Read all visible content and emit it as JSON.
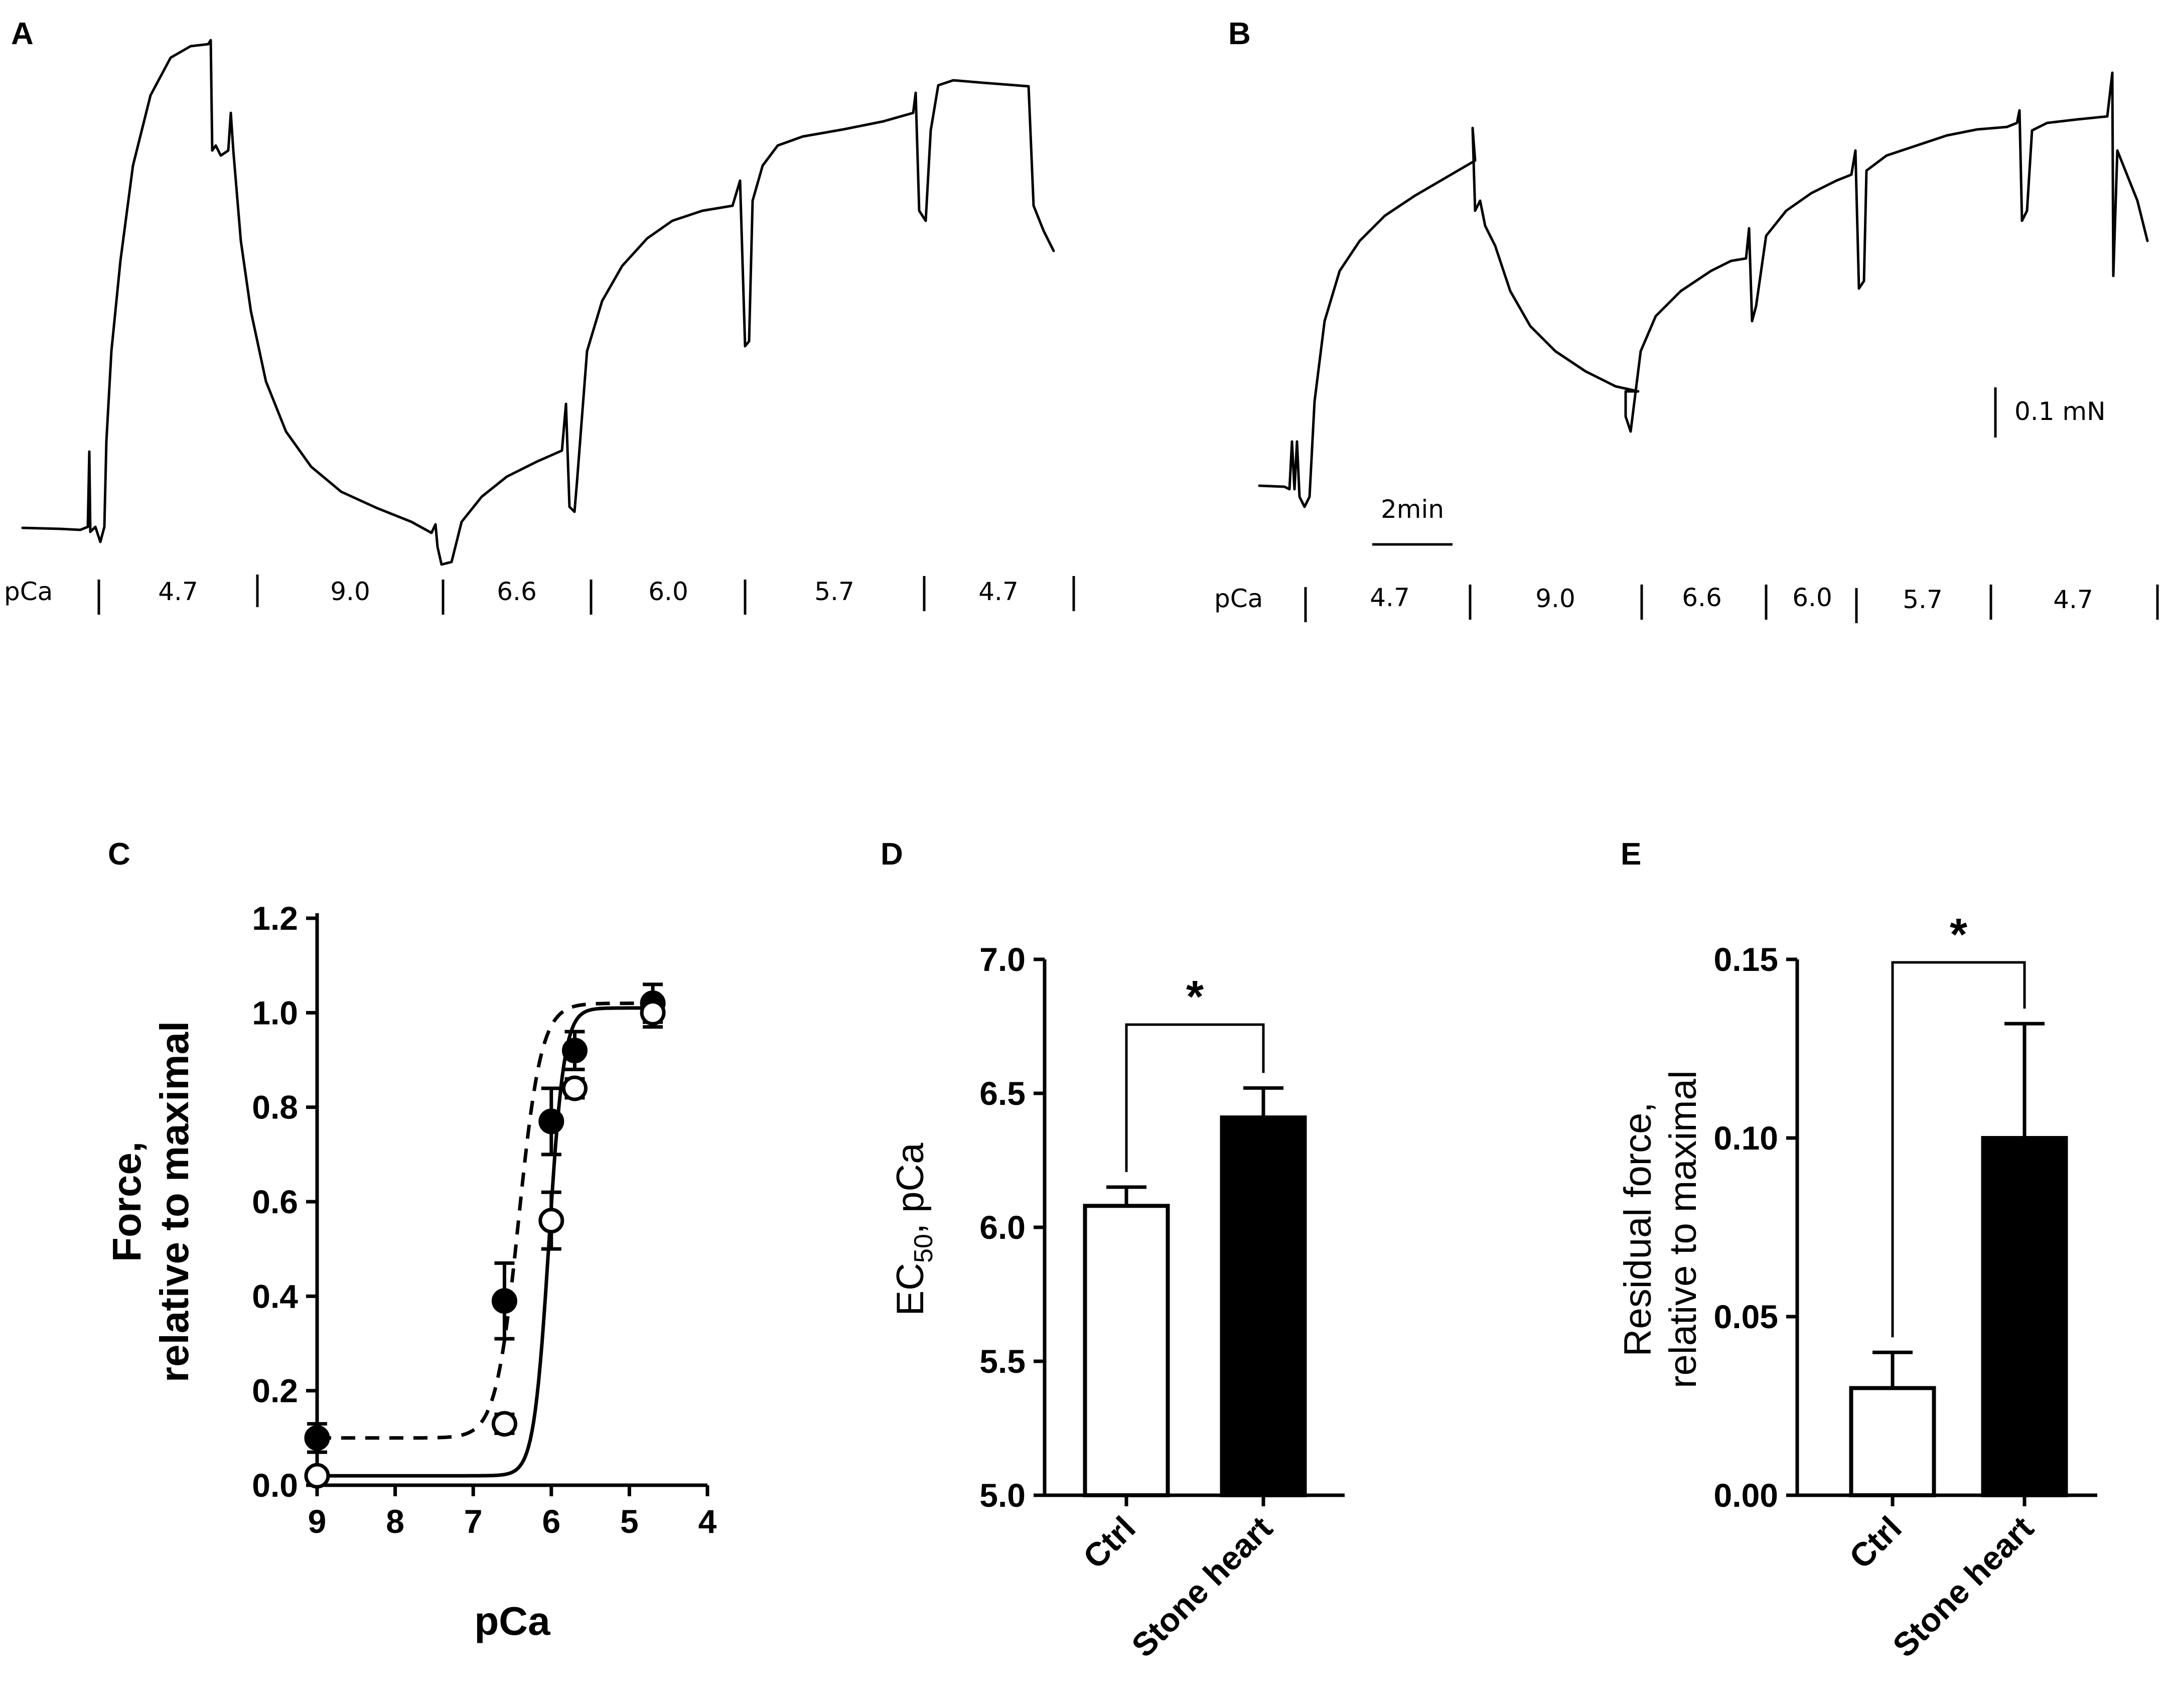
{
  "panels": {
    "A": "A",
    "B": "B",
    "C": "C",
    "D": "D",
    "E": "E"
  },
  "traces": {
    "pca_label": "pCa",
    "A_segments": [
      "4.7",
      "9.0",
      "6.6",
      "6.0",
      "5.7",
      "4.7"
    ],
    "B_segments": [
      "4.7",
      "9.0",
      "6.6",
      "6.0",
      "5.7",
      "4.7"
    ],
    "time_scale": "2min",
    "force_scale": "0.1 mN"
  },
  "chart_data": [
    {
      "panel": "C",
      "type": "line",
      "title": "",
      "xlabel": "pCa",
      "ylabel_line1": "Force,",
      "ylabel_line2": "relative to maximal",
      "xlim": [
        9,
        4
      ],
      "ylim": [
        0,
        1.2
      ],
      "xticks": [
        "9",
        "8",
        "7",
        "6",
        "5",
        "4"
      ],
      "yticks": [
        "0.0",
        "0.2",
        "0.4",
        "0.6",
        "0.8",
        "1.0",
        "1.2"
      ],
      "series": [
        {
          "name": "Stone heart",
          "marker": "filled",
          "line": "dashed",
          "x": [
            9.0,
            6.6,
            6.0,
            5.7,
            4.7
          ],
          "y": [
            0.1,
            0.39,
            0.77,
            0.92,
            1.02
          ],
          "err": [
            0.03,
            0.08,
            0.07,
            0.04,
            0.04
          ]
        },
        {
          "name": "Ctrl",
          "marker": "open",
          "line": "solid",
          "x": [
            9.0,
            6.6,
            6.0,
            5.7,
            4.7
          ],
          "y": [
            0.02,
            0.13,
            0.56,
            0.84,
            1.0
          ],
          "err": [
            0.01,
            0.02,
            0.06,
            0.02,
            0.03
          ]
        }
      ]
    },
    {
      "panel": "D",
      "type": "bar",
      "ylabel": "EC",
      "ylabel_sub": "50",
      "ylabel_rest": ", pCa",
      "ylim": [
        5.0,
        7.0
      ],
      "yticks": [
        "5.0",
        "5.5",
        "6.0",
        "6.5",
        "7.0"
      ],
      "categories": [
        "Ctrl",
        "Stone heart"
      ],
      "values": [
        6.08,
        6.41
      ],
      "err": [
        0.07,
        0.11
      ],
      "significance": "*"
    },
    {
      "panel": "E",
      "type": "bar",
      "ylabel_line1": "Residual force,",
      "ylabel_line2": "relative to maximal",
      "ylim": [
        0,
        0.15
      ],
      "yticks": [
        "0.00",
        "0.05",
        "0.10",
        "0.15"
      ],
      "categories": [
        "Ctrl",
        "Stone heart"
      ],
      "values": [
        0.03,
        0.1
      ],
      "err": [
        0.01,
        0.032
      ],
      "significance": "*"
    }
  ]
}
